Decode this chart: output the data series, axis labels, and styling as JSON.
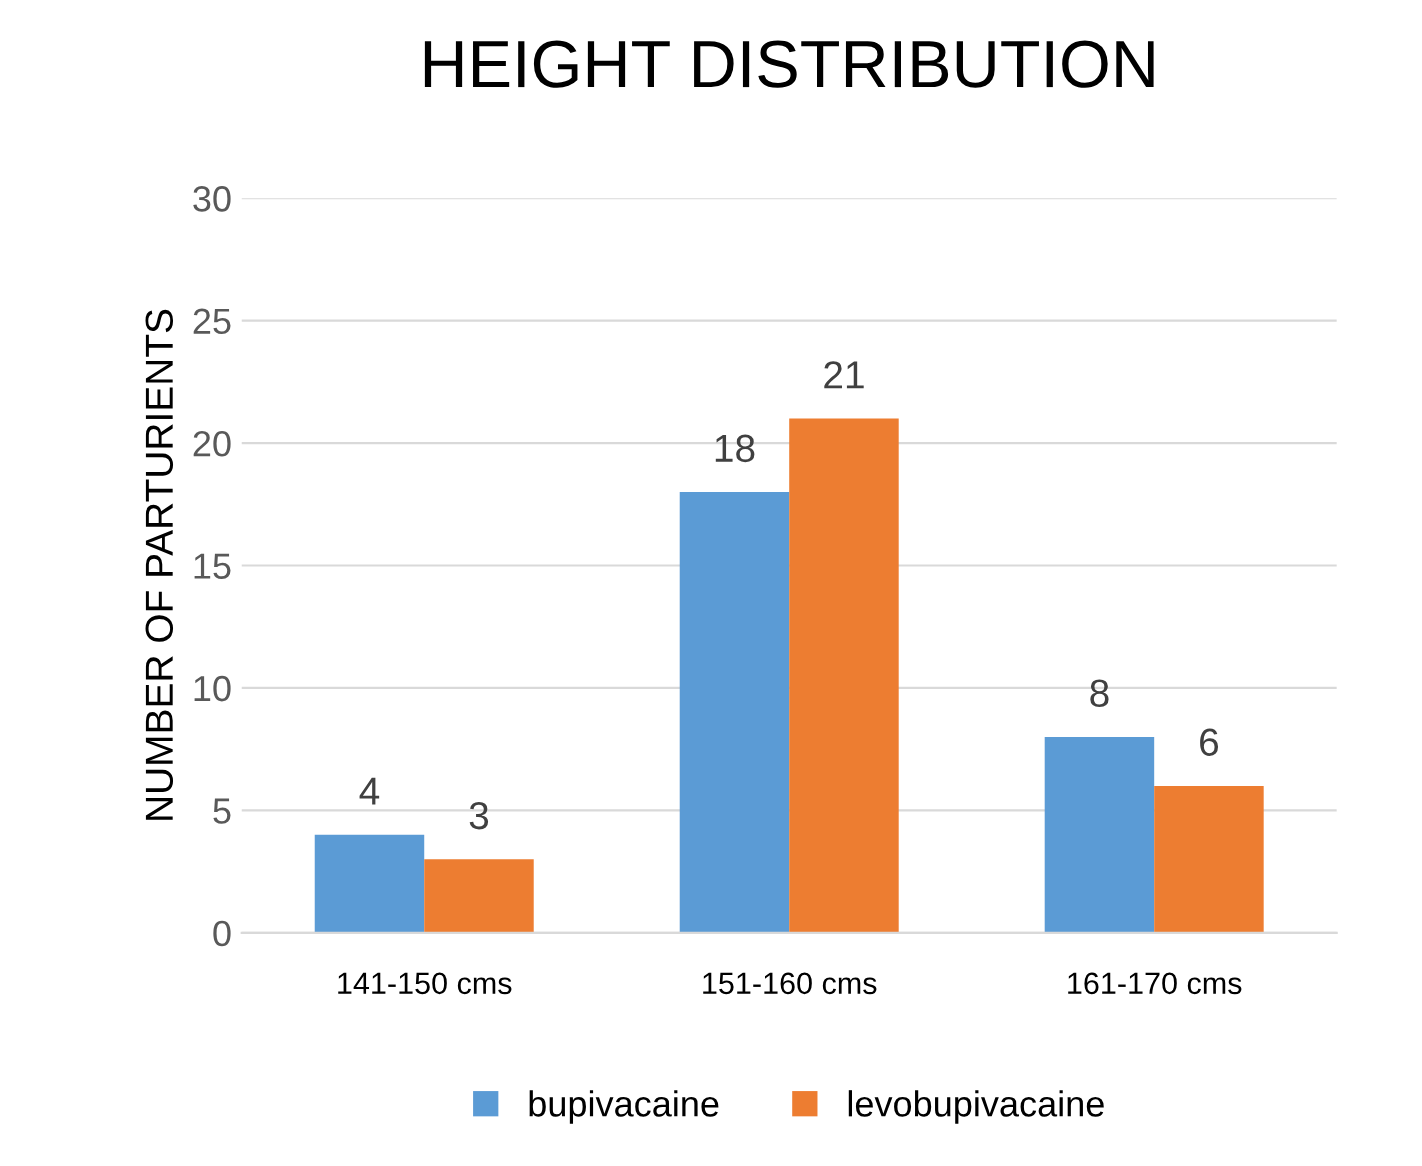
{
  "chart_data": {
    "type": "bar",
    "title": "HEIGHT DISTRIBUTION",
    "ylabel": "NUMBER OF PARTURIENTS",
    "categories": [
      "141-150 cms",
      "151-160 cms",
      "161-170 cms"
    ],
    "series": [
      {
        "name": "bupivacaine",
        "color": "#5b9bd5",
        "values": [
          4,
          18,
          8
        ]
      },
      {
        "name": "levobupivacaine",
        "color": "#ed7d31",
        "values": [
          3,
          21,
          6
        ]
      }
    ],
    "ylim": [
      0,
      30
    ],
    "yticks": [
      0,
      5,
      10,
      15,
      20,
      25,
      30
    ],
    "grid": "y",
    "legend": "bottom",
    "data_labels": true
  }
}
